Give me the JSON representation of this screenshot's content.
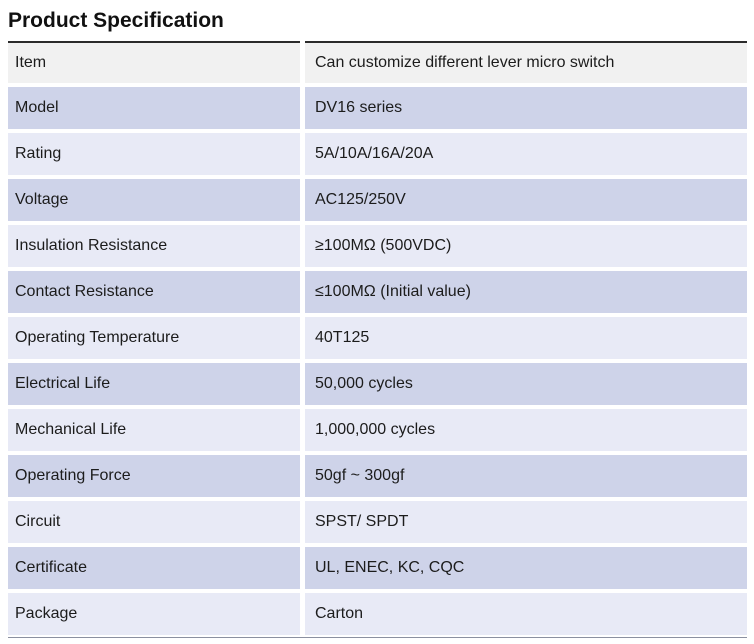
{
  "page": {
    "title": "Product Specification"
  },
  "colors": {
    "row_first_bg": "#f1f1f1",
    "row_dark_bg": "#ced3e9",
    "row_light_bg": "#e8eaf6",
    "top_rule": "#2b2b2b",
    "bottom_rule": "#8b90a0",
    "text": "#1c1c1c"
  },
  "table": {
    "rows": [
      {
        "label": "Item",
        "value": "Can customize different lever micro switch"
      },
      {
        "label": "Model",
        "value": "DV16 series"
      },
      {
        "label": "Rating",
        "value": "5A/10A/16A/20A"
      },
      {
        "label": "Voltage",
        "value": "AC125/250V"
      },
      {
        "label": "Insulation Resistance",
        "value": "≥100MΩ (500VDC)"
      },
      {
        "label": "Contact Resistance",
        "value": "≤100MΩ (Initial value)"
      },
      {
        "label": "Operating Temperature",
        "value": "40T125"
      },
      {
        "label": "Electrical Life",
        "value": "50,000 cycles"
      },
      {
        "label": "Mechanical Life",
        "value": "1,000,000 cycles"
      },
      {
        "label": "Operating Force",
        "value": "50gf ~ 300gf"
      },
      {
        "label": "Circuit",
        "value": "SPST/ SPDT"
      },
      {
        "label": "Certificate",
        "value": "UL, ENEC, KC, CQC"
      },
      {
        "label": "Package",
        "value": "Carton"
      }
    ]
  }
}
